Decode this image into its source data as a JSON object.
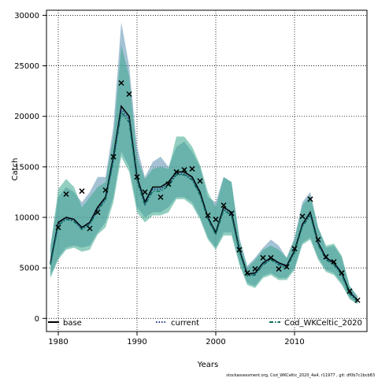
{
  "chart_data": {
    "type": "line",
    "xlabel": "Years",
    "ylabel": "Catch",
    "xlim": [
      1978.5,
      2019.2
    ],
    "ylim": [
      -1300,
      30500
    ],
    "x_ticks": [
      1980,
      1990,
      2000,
      2010
    ],
    "y_ticks": [
      0,
      5000,
      10000,
      15000,
      20000,
      25000,
      30000
    ],
    "grid": true,
    "legend_position": "bottom",
    "footnote": "stockassessment.org, Cod_WKCeltic_2020_4a4, r11977 , git: df0b7c1bcb83",
    "bands": [
      {
        "name": "base",
        "color": "#5b8fb0",
        "x": [
          1979,
          1980,
          1981,
          1982,
          1983,
          1984,
          1985,
          1986,
          1987,
          1988,
          1989,
          1990,
          1991,
          1992,
          1993,
          1994,
          1995,
          1996,
          1997,
          1998,
          1999,
          2000,
          2001,
          2002,
          2003,
          2004,
          2005,
          2006,
          2007,
          2008,
          2009,
          2010,
          2011,
          2012,
          2013,
          2014,
          2015,
          2016,
          2017,
          2018
        ],
        "lower": [
          4200,
          6000,
          7000,
          7200,
          7000,
          7200,
          8500,
          9500,
          12000,
          16500,
          15000,
          11000,
          10000,
          10500,
          10500,
          11000,
          12000,
          12000,
          11500,
          10000,
          8000,
          7000,
          8500,
          8500,
          5500,
          3500,
          3200,
          4200,
          4500,
          4000,
          4000,
          5000,
          7500,
          8000,
          6000,
          4800,
          4500,
          3500,
          2000,
          1500
        ],
        "upper": [
          7200,
          12000,
          13000,
          12500,
          11500,
          12500,
          14000,
          14000,
          19000,
          29300,
          25000,
          17000,
          14000,
          15500,
          16000,
          15000,
          17000,
          17500,
          16500,
          15000,
          12000,
          11500,
          14000,
          13500,
          8000,
          5200,
          6000,
          7000,
          7800,
          7200,
          6000,
          8000,
          11500,
          12500,
          9000,
          7000,
          7200,
          6000,
          3200,
          2200
        ]
      },
      {
        "name": "Cod_WKCeltic_2020",
        "color": "#3aa88c",
        "x": [
          1979,
          1980,
          1981,
          1982,
          1983,
          1984,
          1985,
          1986,
          1987,
          1988,
          1989,
          1990,
          1991,
          1992,
          1993,
          1994,
          1995,
          1996,
          1997,
          1998,
          1999,
          2000,
          2001,
          2002,
          2003,
          2004,
          2005,
          2006,
          2007,
          2008,
          2009,
          2010,
          2011,
          2012,
          2013,
          2014,
          2015,
          2016,
          2017,
          2018
        ],
        "lower": [
          4000,
          5800,
          6800,
          7000,
          6600,
          6800,
          8300,
          9000,
          11500,
          16000,
          14500,
          10500,
          9500,
          10200,
          10200,
          10500,
          11800,
          11800,
          11200,
          9800,
          7800,
          6800,
          8200,
          8200,
          5300,
          3300,
          3000,
          4000,
          4300,
          3800,
          3800,
          4800,
          7300,
          7800,
          5800,
          4600,
          4300,
          3300,
          1900,
          1400
        ],
        "upper": [
          7000,
          12800,
          13800,
          13000,
          11000,
          12000,
          13000,
          13500,
          18000,
          27000,
          24000,
          16000,
          13800,
          14800,
          15000,
          14800,
          18000,
          18000,
          17000,
          15200,
          12500,
          11000,
          14000,
          13500,
          7800,
          5000,
          5800,
          6800,
          7200,
          6800,
          6000,
          7800,
          11200,
          12200,
          9000,
          7200,
          7400,
          6200,
          3200,
          2200
        ]
      }
    ],
    "series": [
      {
        "name": "base",
        "style": "solid",
        "color": "#000000",
        "x": [
          1979,
          1980,
          1981,
          1982,
          1983,
          1984,
          1985,
          1986,
          1987,
          1988,
          1989,
          1990,
          1991,
          1992,
          1993,
          1994,
          1995,
          1996,
          1997,
          1998,
          1999,
          2000,
          2001,
          2002,
          2003,
          2004,
          2005,
          2006,
          2007,
          2008,
          2009,
          2010,
          2011,
          2012,
          2013,
          2014,
          2015,
          2016,
          2017,
          2018
        ],
        "values": [
          5500,
          9500,
          10000,
          9800,
          9000,
          9500,
          11000,
          12000,
          16000,
          21000,
          20000,
          14000,
          11500,
          13000,
          13000,
          13500,
          14500,
          14500,
          14000,
          12500,
          10000,
          8500,
          11000,
          10500,
          6800,
          4400,
          4500,
          5500,
          6000,
          5500,
          5200,
          6700,
          9300,
          10500,
          7500,
          6000,
          5500,
          4500,
          2600,
          1800
        ]
      },
      {
        "name": "current",
        "style": "dotted",
        "color": "#1a3a8a",
        "x": [
          1979,
          1980,
          1981,
          1982,
          1983,
          1984,
          1985,
          1986,
          1987,
          1988,
          1989,
          1990,
          1991,
          1992,
          1993,
          1994,
          1995,
          1996,
          1997,
          1998,
          1999,
          2000,
          2001,
          2002,
          2003,
          2004,
          2005,
          2006,
          2007,
          2008,
          2009,
          2010,
          2011,
          2012,
          2013,
          2014,
          2015,
          2016,
          2017,
          2018
        ],
        "values": [
          5400,
          9300,
          9900,
          9700,
          8900,
          9400,
          10800,
          11800,
          15800,
          20700,
          19700,
          13800,
          11300,
          12800,
          12800,
          13300,
          14300,
          14300,
          13800,
          12300,
          9900,
          8400,
          10800,
          10300,
          6700,
          4300,
          4400,
          5400,
          5900,
          5400,
          5100,
          6600,
          9200,
          10300,
          7400,
          5900,
          5400,
          4400,
          2500,
          1800
        ]
      },
      {
        "name": "Cod_WKCeltic_2020",
        "style": "dashdot",
        "color": "#0f6e5a",
        "x": [
          1979,
          1980,
          1981,
          1982,
          1983,
          1984,
          1985,
          1986,
          1987,
          1988,
          1989,
          1990,
          1991,
          1992,
          1993,
          1994,
          1995,
          1996,
          1997,
          1998,
          1999,
          2000,
          2001,
          2002,
          2003,
          2004,
          2005,
          2006,
          2007,
          2008,
          2009,
          2010,
          2011,
          2012,
          2013,
          2014,
          2015,
          2016,
          2017,
          2018
        ],
        "values": [
          5300,
          9200,
          9800,
          9600,
          8800,
          9300,
          10700,
          11700,
          15600,
          20400,
          19400,
          13600,
          11200,
          12600,
          12600,
          13100,
          14200,
          14200,
          13700,
          12200,
          9800,
          8300,
          10700,
          10200,
          6600,
          4200,
          4300,
          5300,
          5800,
          5300,
          5000,
          6500,
          9100,
          10200,
          7300,
          5800,
          5300,
          4300,
          2400,
          1700
        ]
      }
    ],
    "observed": {
      "name": "observed catch",
      "marker": "x",
      "x": [
        1980,
        1981,
        1983,
        1984,
        1985,
        1986,
        1987,
        1988,
        1989,
        1990,
        1991,
        1993,
        1994,
        1995,
        1996,
        1997,
        1998,
        1999,
        2000,
        2001,
        2002,
        2003,
        2004,
        2005,
        2006,
        2007,
        2008,
        2009,
        2010,
        2011,
        2012,
        2013,
        2014,
        2015,
        2016,
        2017,
        2018
      ],
      "values": [
        9000,
        12300,
        12600,
        8900,
        10500,
        12700,
        16000,
        23300,
        22200,
        14000,
        12500,
        12000,
        13300,
        14500,
        14700,
        14800,
        13600,
        10200,
        9800,
        11200,
        10400,
        6800,
        4500,
        4900,
        6000,
        6000,
        4900,
        5100,
        6900,
        10100,
        11800,
        7800,
        6100,
        5600,
        4500,
        2700,
        1800
      ]
    }
  }
}
